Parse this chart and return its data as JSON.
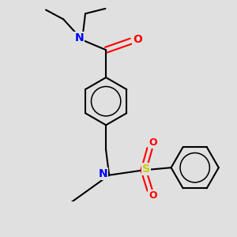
{
  "bg_color": "#e0e0e0",
  "bond_color": "#000000",
  "bond_width": 1.5,
  "atom_colors": {
    "N": "#0000ff",
    "O": "#ff0000",
    "S": "#cccc00",
    "Cl": "#00bb00",
    "C": "#000000"
  },
  "font_size": 9
}
